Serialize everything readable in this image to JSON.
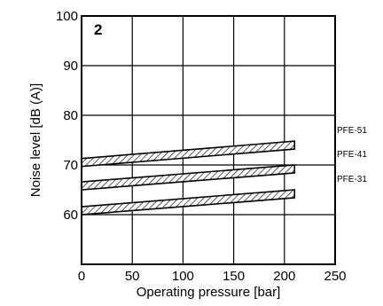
{
  "chart_data": {
    "type": "line",
    "panel_label": "2",
    "xlabel": "Operating pressure [bar]",
    "ylabel": "Noise level [dB (A)]",
    "xlim": [
      0,
      250
    ],
    "ylim": [
      50,
      100
    ],
    "x_ticks": [
      0,
      50,
      100,
      150,
      200,
      250
    ],
    "y_ticks": [
      60,
      70,
      80,
      90,
      100
    ],
    "grid": true,
    "legend": "inline-right",
    "band_width_db": 1.6,
    "series": [
      {
        "name": "PFE-51",
        "x": [
          0,
          210
        ],
        "y": [
          70.5,
          74.0
        ]
      },
      {
        "name": "PFE-41",
        "x": [
          0,
          210
        ],
        "y": [
          65.8,
          69.2
        ]
      },
      {
        "name": "PFE-31",
        "x": [
          0,
          210
        ],
        "y": [
          60.8,
          64.2
        ]
      }
    ]
  }
}
